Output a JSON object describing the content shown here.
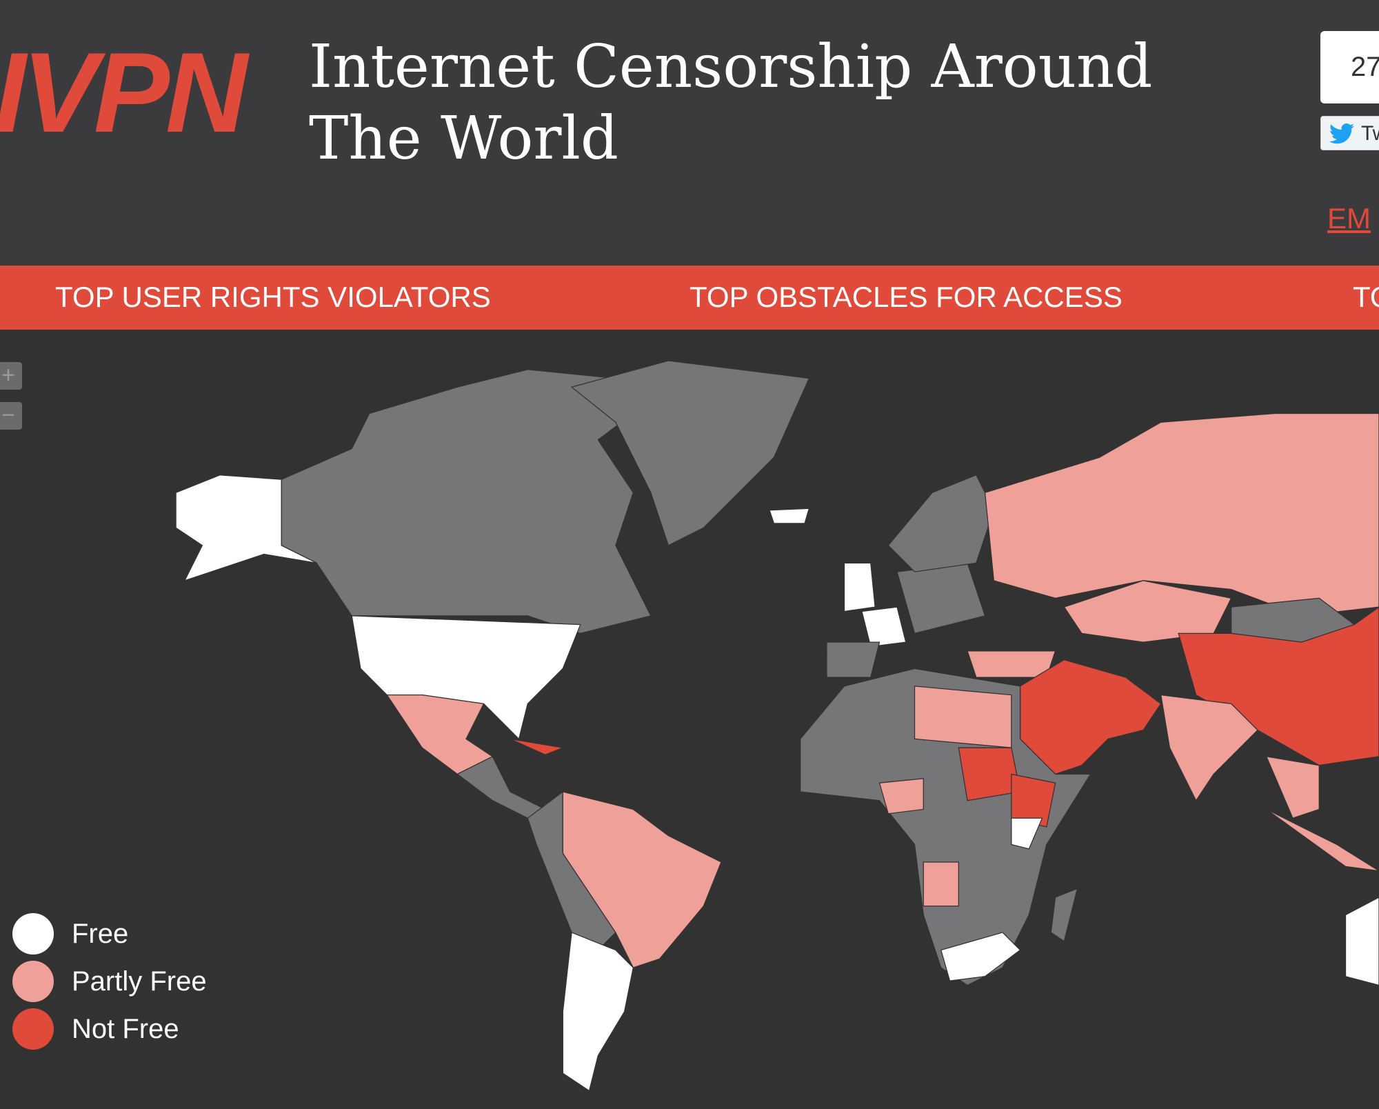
{
  "header": {
    "logo": "IVPN",
    "title": "Internet Censorship Around The World",
    "share_count": "27",
    "tweet": "Tw",
    "email": "EM"
  },
  "nav": [
    "TOP USER RIGHTS VIOLATORS",
    "TOP OBSTACLES FOR ACCESS",
    "TO"
  ],
  "zoom": [
    "+",
    "−"
  ],
  "legend": [
    {
      "label": "Free",
      "color": "#ffffff"
    },
    {
      "label": "Partly Free",
      "color": "#efa199"
    },
    {
      "label": "Not Free",
      "color": "#e04a3a"
    }
  ],
  "other_color": "#767577"
}
